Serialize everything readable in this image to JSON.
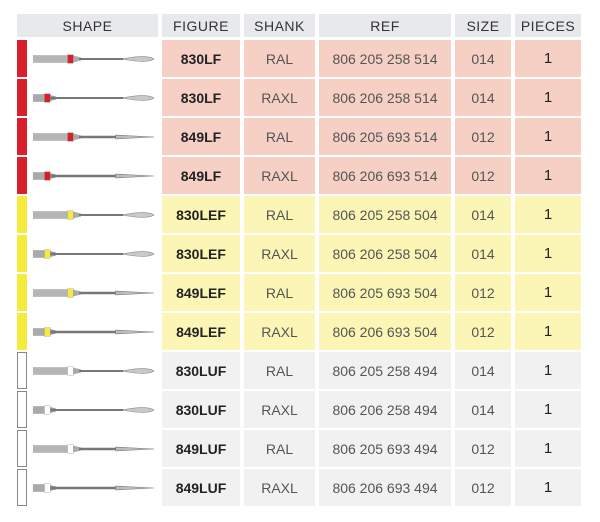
{
  "headers": [
    "SHAPE",
    "FIGURE",
    "SHANK",
    "REF",
    "SIZE",
    "PIECES"
  ],
  "colors": {
    "red": "#d81f2a",
    "yellow": "#f6ea3c",
    "white": "#ffffff",
    "red_bg": "#f6cfc5",
    "yellow_bg": "#fbf6b5",
    "white_bg": "#f1f1f1"
  },
  "rows": [
    {
      "color": "red",
      "tip": "flame",
      "shank": "RAL",
      "figure": "830LF",
      "shank_type": "RAL",
      "ref": "806 205 258 514",
      "size": "014",
      "pieces": "1"
    },
    {
      "color": "red",
      "tip": "flame",
      "shank": "RAXL",
      "figure": "830LF",
      "shank_type": "RAXL",
      "ref": "806 206 258 514",
      "size": "014",
      "pieces": "1"
    },
    {
      "color": "red",
      "tip": "needle",
      "shank": "RAL",
      "figure": "849LF",
      "shank_type": "RAL",
      "ref": "806 205 693 514",
      "size": "012",
      "pieces": "1"
    },
    {
      "color": "red",
      "tip": "needle",
      "shank": "RAXL",
      "figure": "849LF",
      "shank_type": "RAXL",
      "ref": "806 206 693 514",
      "size": "012",
      "pieces": "1"
    },
    {
      "color": "yellow",
      "tip": "flame",
      "shank": "RAL",
      "figure": "830LEF",
      "shank_type": "RAL",
      "ref": "806 205 258 504",
      "size": "014",
      "pieces": "1"
    },
    {
      "color": "yellow",
      "tip": "flame",
      "shank": "RAXL",
      "figure": "830LEF",
      "shank_type": "RAXL",
      "ref": "806 206 258 504",
      "size": "014",
      "pieces": "1"
    },
    {
      "color": "yellow",
      "tip": "needle",
      "shank": "RAL",
      "figure": "849LEF",
      "shank_type": "RAL",
      "ref": "806 205 693 504",
      "size": "012",
      "pieces": "1"
    },
    {
      "color": "yellow",
      "tip": "needle",
      "shank": "RAXL",
      "figure": "849LEF",
      "shank_type": "RAXL",
      "ref": "806 206 693 504",
      "size": "012",
      "pieces": "1"
    },
    {
      "color": "white",
      "tip": "flame",
      "shank": "RAL",
      "figure": "830LUF",
      "shank_type": "RAL",
      "ref": "806 205 258 494",
      "size": "014",
      "pieces": "1"
    },
    {
      "color": "white",
      "tip": "flame",
      "shank": "RAXL",
      "figure": "830LUF",
      "shank_type": "RAXL",
      "ref": "806 206 258 494",
      "size": "014",
      "pieces": "1"
    },
    {
      "color": "white",
      "tip": "needle",
      "shank": "RAL",
      "figure": "849LUF",
      "shank_type": "RAL",
      "ref": "806 205 693 494",
      "size": "012",
      "pieces": "1"
    },
    {
      "color": "white",
      "tip": "needle",
      "shank": "RAXL",
      "figure": "849LUF",
      "shank_type": "RAXL",
      "ref": "806 206 693 494",
      "size": "012",
      "pieces": "1"
    }
  ]
}
